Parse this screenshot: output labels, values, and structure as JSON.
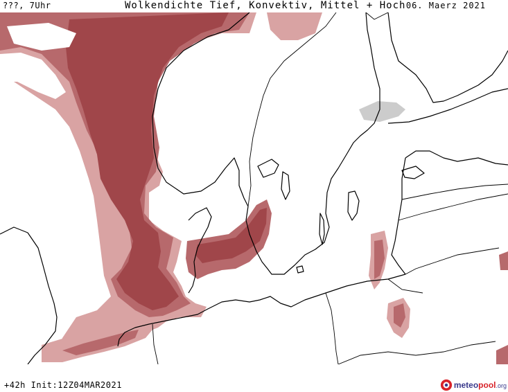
{
  "header": {
    "left_text": "???, 7Uhr",
    "title": "Wolkendichte  Tief, Konvektiv, Mittel + Hoch",
    "date": "06. Maerz 2021"
  },
  "footer": {
    "run_info": "+42h Init:12Z04MAR2021"
  },
  "logo": {
    "name_a": "meteo",
    "name_b": "pool",
    "tld": ".org"
  },
  "colors": {
    "cloud_dark": "#a0464a",
    "cloud_mid": "#b7696c",
    "cloud_light": "#d9a3a3",
    "coast": "#000000",
    "logo_blue": "#3a3a8c",
    "logo_red": "#d8232a"
  }
}
